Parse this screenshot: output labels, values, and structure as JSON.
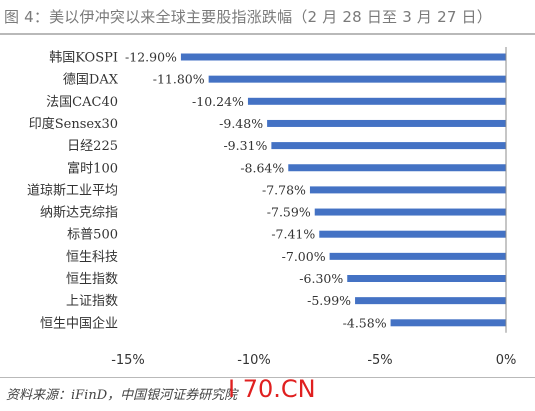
{
  "figure": {
    "title": "图 4：美以伊冲突以来全球主要股指涨跌幅（2 月 28 日至 3 月 27 日）",
    "source": "资料来源：iFinD，中国银河证券研究院",
    "watermark": "I 70.CN"
  },
  "chart_data": {
    "type": "bar",
    "orientation": "horizontal",
    "title": "图 4：美以伊冲突以来全球主要股指涨跌幅（2 月 28 日至 3 月 27 日）",
    "categories": [
      "韩国KOSPI",
      "德国DAX",
      "法国CAC40",
      "印度Sensex30",
      "日经225",
      "富时100",
      "道琼斯工业平均",
      "纳斯达克综指",
      "标普500",
      "恒生科技",
      "恒生指数",
      "上证指数",
      "恒生中国企业"
    ],
    "values": [
      -12.9,
      -11.8,
      -10.24,
      -9.48,
      -9.31,
      -8.64,
      -7.78,
      -7.59,
      -7.41,
      -7.0,
      -6.3,
      -5.99,
      -4.58
    ],
    "value_labels": [
      "-12.90%",
      "-11.80%",
      "-10.24%",
      "-9.48%",
      "-9.31%",
      "-8.64%",
      "-7.78%",
      "-7.59%",
      "-7.41%",
      "-7.00%",
      "-6.30%",
      "-5.99%",
      "-4.58%"
    ],
    "highlight_label_index": 0,
    "xlim": [
      -15,
      0
    ],
    "xticks": [
      -15,
      -10,
      -5,
      0
    ],
    "xtick_labels": [
      "-15%",
      "-10%",
      "-5%",
      "0%"
    ],
    "grid": false,
    "legend": "none",
    "colors": {
      "bar": "#4472c4",
      "highlight_label": "#c00000",
      "text": "#333333"
    }
  }
}
